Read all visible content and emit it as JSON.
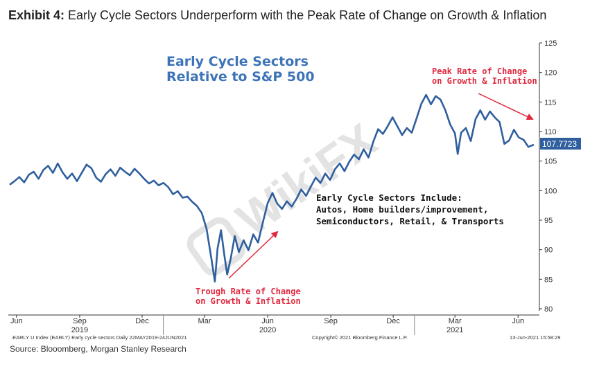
{
  "exhibit": {
    "label": "Exhibit 4:",
    "title": "Early Cycle Sectors Underperform with the Peak Rate of Change on Growth & Inflation"
  },
  "source": "Source: Blooomberg, Morgan Stanley Research",
  "footer": {
    "left": ".EARLY U Index (EARLY) Early cycle sectors  Daily 22MAY2019-24JUN2021",
    "center": "Copyright© 2021 Bloomberg Finance L.P.",
    "right": "13-Jun-2021 15:58:29"
  },
  "watermark": "WikiFX",
  "colors": {
    "series": "#2f5f9e",
    "title": "#3d74b8",
    "annotation": "#e0283d",
    "last_label_bg": "#2f5f9e"
  },
  "chart_data": {
    "type": "line",
    "title": "Early Cycle Sectors Relative to S&P 500",
    "title_lines": [
      "Early Cycle Sectors",
      "Relative to S&P 500"
    ],
    "xlabel": "",
    "ylabel": "",
    "ylim": [
      80,
      125
    ],
    "yticks": [
      80,
      85,
      90,
      95,
      100,
      105,
      110,
      115,
      120,
      125
    ],
    "x_range": [
      "2019-05-22",
      "2021-06-24"
    ],
    "x_ticks": [
      {
        "label": "Jun",
        "date": "2019-06-01"
      },
      {
        "label": "Sep",
        "date": "2019-09-01"
      },
      {
        "label": "Dec",
        "date": "2019-12-01"
      },
      {
        "label": "Mar",
        "date": "2020-03-01"
      },
      {
        "label": "Jun",
        "date": "2020-06-01"
      },
      {
        "label": "Sep",
        "date": "2020-09-01"
      },
      {
        "label": "Dec",
        "date": "2020-12-01"
      },
      {
        "label": "Mar",
        "date": "2021-03-01"
      },
      {
        "label": "Jun",
        "date": "2021-06-01"
      }
    ],
    "year_labels": [
      {
        "label": "2019",
        "date": "2019-09-01"
      },
      {
        "label": "2020",
        "date": "2020-06-01"
      },
      {
        "label": "2021",
        "date": "2021-03-01"
      }
    ],
    "series": [
      {
        "name": "EARLY U Index (Early cycle sectors)",
        "last_value_label": "107.7723",
        "points": [
          [
            "2019-05-22",
            101.0
          ],
          [
            "2019-05-29",
            101.6
          ],
          [
            "2019-06-05",
            102.3
          ],
          [
            "2019-06-12",
            101.4
          ],
          [
            "2019-06-19",
            102.7
          ],
          [
            "2019-06-26",
            103.2
          ],
          [
            "2019-07-03",
            102.0
          ],
          [
            "2019-07-10",
            103.5
          ],
          [
            "2019-07-17",
            104.2
          ],
          [
            "2019-07-24",
            103.0
          ],
          [
            "2019-07-31",
            104.6
          ],
          [
            "2019-08-07",
            103.1
          ],
          [
            "2019-08-14",
            102.0
          ],
          [
            "2019-08-21",
            102.9
          ],
          [
            "2019-08-28",
            101.6
          ],
          [
            "2019-09-04",
            103.0
          ],
          [
            "2019-09-11",
            104.4
          ],
          [
            "2019-09-18",
            103.8
          ],
          [
            "2019-09-25",
            102.2
          ],
          [
            "2019-10-02",
            101.5
          ],
          [
            "2019-10-09",
            102.8
          ],
          [
            "2019-10-16",
            103.6
          ],
          [
            "2019-10-23",
            102.5
          ],
          [
            "2019-10-30",
            103.9
          ],
          [
            "2019-11-06",
            103.2
          ],
          [
            "2019-11-13",
            102.6
          ],
          [
            "2019-11-20",
            103.7
          ],
          [
            "2019-11-27",
            102.9
          ],
          [
            "2019-12-04",
            102.0
          ],
          [
            "2019-12-11",
            101.2
          ],
          [
            "2019-12-18",
            101.7
          ],
          [
            "2019-12-25",
            100.9
          ],
          [
            "2020-01-01",
            101.3
          ],
          [
            "2020-01-08",
            100.6
          ],
          [
            "2020-01-15",
            99.4
          ],
          [
            "2020-01-22",
            99.9
          ],
          [
            "2020-01-29",
            98.8
          ],
          [
            "2020-02-05",
            99.0
          ],
          [
            "2020-02-12",
            98.1
          ],
          [
            "2020-02-19",
            97.4
          ],
          [
            "2020-02-26",
            96.2
          ],
          [
            "2020-03-04",
            93.5
          ],
          [
            "2020-03-11",
            88.5
          ],
          [
            "2020-03-16",
            84.6
          ],
          [
            "2020-03-20",
            90.2
          ],
          [
            "2020-03-25",
            93.3
          ],
          [
            "2020-03-30",
            89.0
          ],
          [
            "2020-04-03",
            85.8
          ],
          [
            "2020-04-08",
            88.4
          ],
          [
            "2020-04-14",
            92.3
          ],
          [
            "2020-04-20",
            89.6
          ],
          [
            "2020-04-27",
            91.6
          ],
          [
            "2020-05-04",
            89.9
          ],
          [
            "2020-05-11",
            92.6
          ],
          [
            "2020-05-18",
            91.2
          ],
          [
            "2020-05-25",
            94.6
          ],
          [
            "2020-06-01",
            97.9
          ],
          [
            "2020-06-08",
            99.6
          ],
          [
            "2020-06-15",
            97.8
          ],
          [
            "2020-06-22",
            96.9
          ],
          [
            "2020-06-29",
            98.2
          ],
          [
            "2020-07-06",
            97.3
          ],
          [
            "2020-07-13",
            98.6
          ],
          [
            "2020-07-20",
            100.2
          ],
          [
            "2020-07-27",
            99.1
          ],
          [
            "2020-08-03",
            100.7
          ],
          [
            "2020-08-10",
            102.2
          ],
          [
            "2020-08-17",
            101.3
          ],
          [
            "2020-08-24",
            102.9
          ],
          [
            "2020-08-31",
            101.8
          ],
          [
            "2020-09-07",
            103.6
          ],
          [
            "2020-09-14",
            104.6
          ],
          [
            "2020-09-21",
            103.3
          ],
          [
            "2020-09-28",
            104.9
          ],
          [
            "2020-10-05",
            106.1
          ],
          [
            "2020-10-12",
            105.3
          ],
          [
            "2020-10-19",
            107.0
          ],
          [
            "2020-10-26",
            105.6
          ],
          [
            "2020-11-02",
            108.3
          ],
          [
            "2020-11-09",
            110.4
          ],
          [
            "2020-11-16",
            109.6
          ],
          [
            "2020-11-23",
            110.9
          ],
          [
            "2020-11-30",
            112.4
          ],
          [
            "2020-12-07",
            110.9
          ],
          [
            "2020-12-14",
            109.4
          ],
          [
            "2020-12-21",
            110.6
          ],
          [
            "2020-12-28",
            109.8
          ],
          [
            "2021-01-04",
            112.2
          ],
          [
            "2021-01-11",
            114.7
          ],
          [
            "2021-01-18",
            116.2
          ],
          [
            "2021-01-25",
            114.6
          ],
          [
            "2021-02-01",
            116.0
          ],
          [
            "2021-02-08",
            115.4
          ],
          [
            "2021-02-15",
            113.6
          ],
          [
            "2021-02-22",
            111.2
          ],
          [
            "2021-03-01",
            109.7
          ],
          [
            "2021-03-05",
            106.2
          ],
          [
            "2021-03-10",
            109.8
          ],
          [
            "2021-03-17",
            110.6
          ],
          [
            "2021-03-24",
            108.4
          ],
          [
            "2021-03-31",
            112.1
          ],
          [
            "2021-04-07",
            113.6
          ],
          [
            "2021-04-14",
            112.0
          ],
          [
            "2021-04-21",
            113.4
          ],
          [
            "2021-04-28",
            112.4
          ],
          [
            "2021-05-05",
            111.6
          ],
          [
            "2021-05-12",
            107.9
          ],
          [
            "2021-05-19",
            108.5
          ],
          [
            "2021-05-26",
            110.3
          ],
          [
            "2021-06-02",
            109.0
          ],
          [
            "2021-06-09",
            108.6
          ],
          [
            "2021-06-16",
            107.4
          ],
          [
            "2021-06-24",
            107.77
          ]
        ]
      }
    ],
    "annotations": {
      "trough": {
        "lines": [
          "Trough Rate of Change",
          "on Growth & Inflation"
        ]
      },
      "peak": {
        "lines": [
          "Peak Rate of Change",
          "on Growth & Inflation"
        ]
      },
      "includes": {
        "lines": [
          "Early Cycle Sectors Include:",
          "Autos, Home builders/improvement,",
          "Semiconductors, Retail, & Transports"
        ]
      }
    }
  }
}
